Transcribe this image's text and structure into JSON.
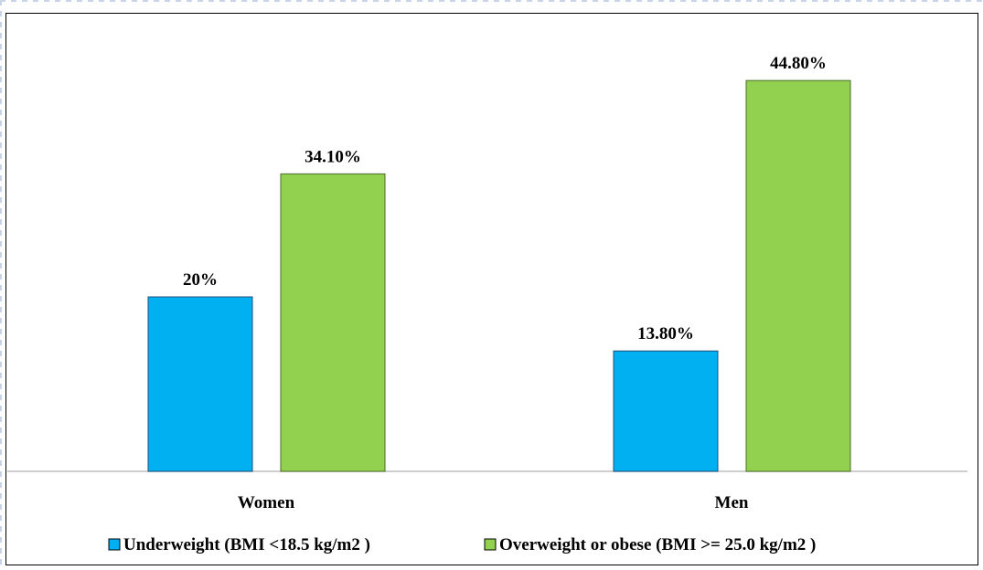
{
  "chart_data": {
    "type": "bar",
    "categories": [
      "Women",
      "Men"
    ],
    "series": [
      {
        "name": "Underweight (BMI <18.5 kg/m2 )",
        "values": [
          20.0,
          13.8
        ],
        "labels": [
          "20%",
          "13.80%"
        ],
        "color": "#00B0F0"
      },
      {
        "name": "Overweight or obese (BMI >= 25.0 kg/m2 )",
        "values": [
          34.1,
          44.8
        ],
        "labels": [
          "34.10%",
          "44.80%"
        ],
        "color": "#92D050"
      }
    ],
    "title": "",
    "xlabel": "",
    "ylabel": "",
    "ylim": [
      0,
      50
    ],
    "grid": false,
    "legend_position": "bottom"
  }
}
